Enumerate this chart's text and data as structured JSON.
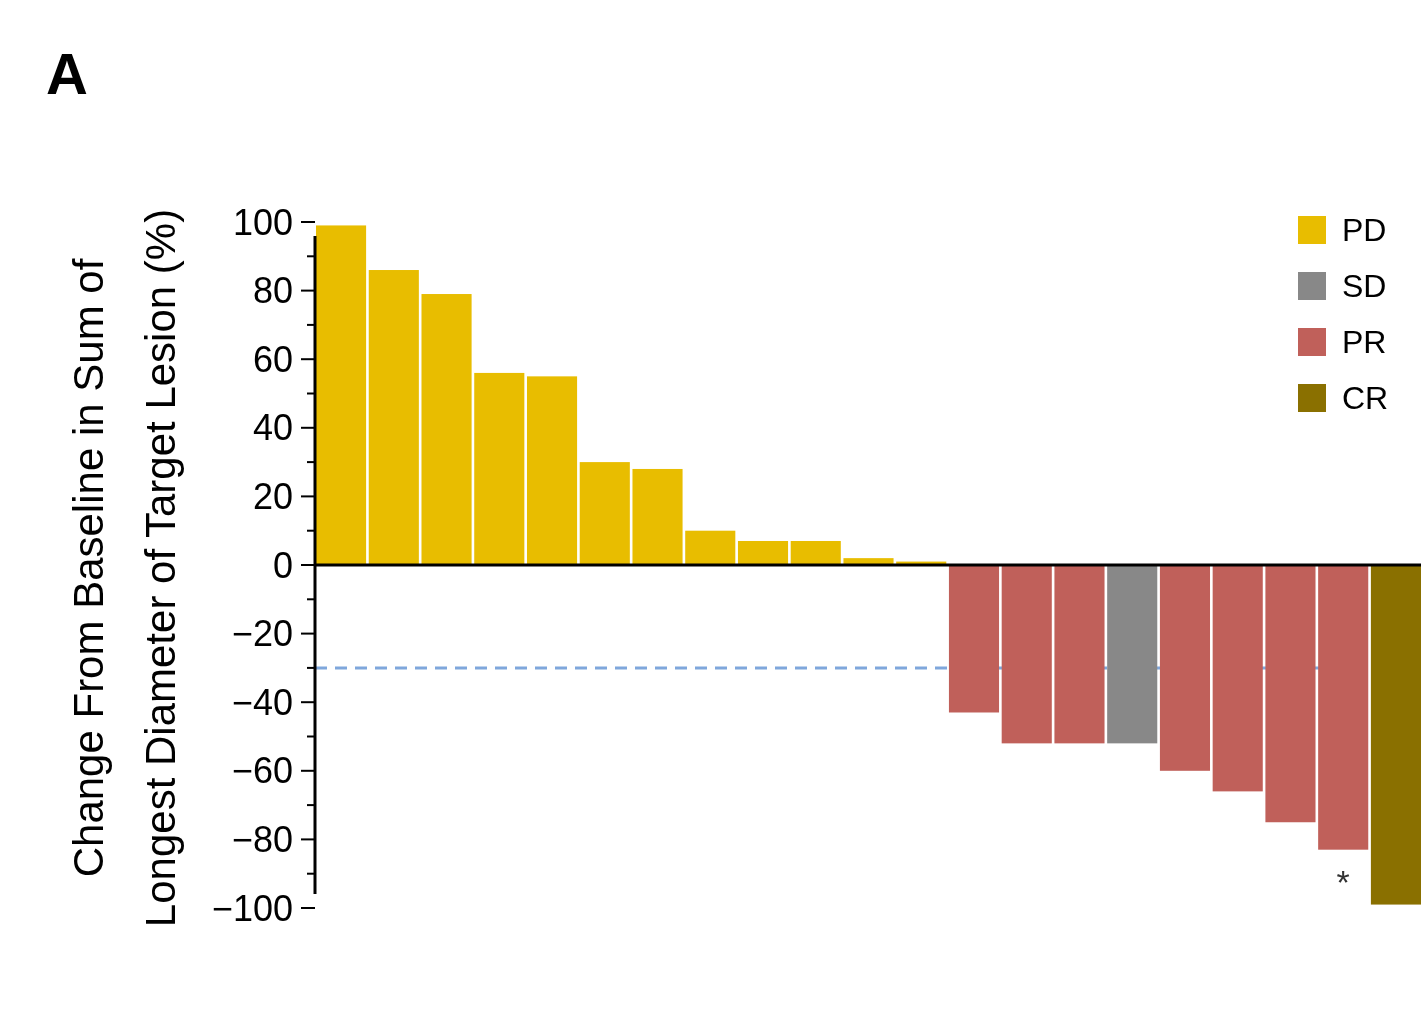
{
  "chart_data": {
    "type": "bar",
    "title": "A",
    "ylabel": "Change From Baseline in Sum of\nLongest Diameter of Target Lesion (%)",
    "categories": [
      null,
      null,
      null,
      null,
      null,
      null,
      null,
      null,
      null,
      null,
      null,
      null,
      null,
      null,
      null,
      null,
      null,
      null,
      null,
      null,
      null
    ],
    "series": [
      {
        "name": "PD",
        "color": "#e8bd00",
        "values": [
          99,
          86,
          79,
          56,
          55,
          30,
          28,
          10,
          7,
          7,
          2,
          1,
          null,
          null,
          null,
          null,
          null,
          null,
          null,
          null,
          null
        ]
      },
      {
        "name": "SD",
        "color": "#888888",
        "values": [
          null,
          null,
          null,
          null,
          null,
          null,
          null,
          null,
          null,
          null,
          null,
          null,
          null,
          null,
          null,
          -52,
          null,
          null,
          null,
          null,
          null
        ]
      },
      {
        "name": "PR",
        "color": "#c0605a",
        "values": [
          null,
          null,
          null,
          null,
          null,
          null,
          null,
          null,
          null,
          null,
          null,
          null,
          -43,
          -52,
          -52,
          null,
          -60,
          -66,
          -75,
          -83,
          null
        ]
      },
      {
        "name": "CR",
        "color": "#8a7000",
        "values": [
          null,
          null,
          null,
          null,
          null,
          null,
          null,
          null,
          null,
          null,
          null,
          null,
          null,
          null,
          null,
          null,
          null,
          null,
          null,
          null,
          -99
        ]
      }
    ],
    "ylim": [
      -100,
      100
    ],
    "yticks": [
      100,
      {
        "value": 90,
        "label": null
      },
      80,
      {
        "value": 70,
        "label": null
      },
      60,
      {
        "value": 50,
        "label": null
      },
      40,
      {
        "value": 30,
        "label": null
      },
      20,
      {
        "value": 10,
        "label": null
      },
      0,
      {
        "value": -10,
        "label": null
      },
      -20,
      {
        "value": -30,
        "label": null
      },
      -40,
      {
        "value": -50,
        "label": null
      },
      -60,
      {
        "value": -70,
        "label": null
      },
      -80,
      {
        "value": -90,
        "label": null
      },
      -100
    ],
    "ref_lines": [
      {
        "axis": "y",
        "value": -30,
        "color": "#7fa7dc",
        "line_style": "dashed"
      }
    ],
    "annotations": [
      "*"
    ],
    "legend": "top right"
  }
}
